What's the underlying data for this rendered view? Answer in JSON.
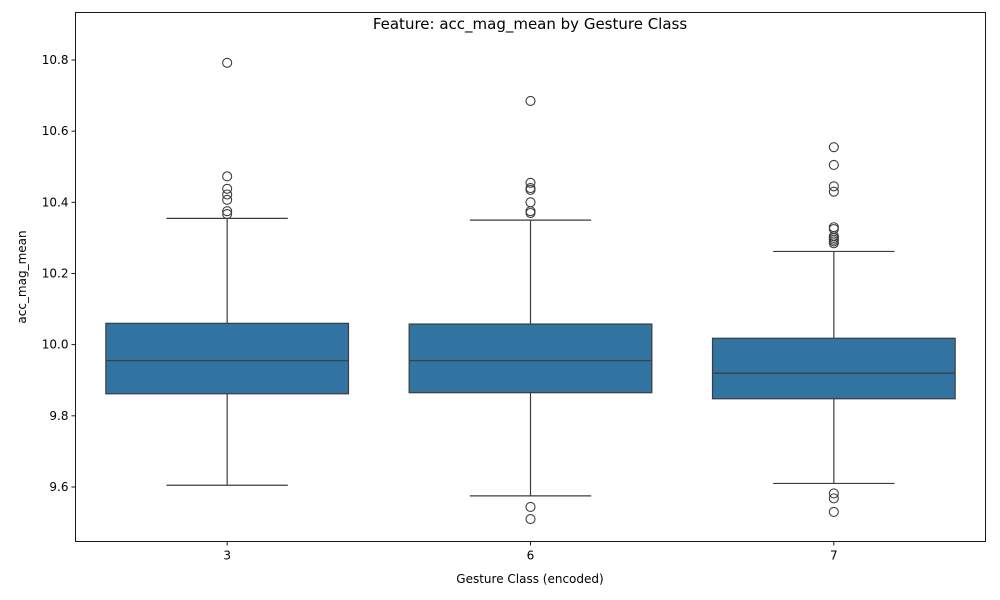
{
  "chart_data": {
    "type": "box",
    "title": "Feature: acc_mag_mean by Gesture Class",
    "xlabel": "Gesture Class (encoded)",
    "ylabel": "acc_mag_mean",
    "ylim": [
      9.45,
      10.85
    ],
    "yticks": [
      "9.6",
      "9.8",
      "10.0",
      "10.2",
      "10.4",
      "10.6",
      "10.8"
    ],
    "grid": false,
    "box_color": "#3274a1",
    "line_color": "#3d3d3d",
    "categories": [
      "3",
      "6",
      "7"
    ],
    "boxes": [
      {
        "category": "3",
        "whisker_low": 9.605,
        "q1": 9.862,
        "median": 9.955,
        "q3": 10.06,
        "whisker_high": 10.355,
        "outliers": [
          10.792,
          10.473,
          10.438,
          10.422,
          10.407,
          10.375,
          10.367
        ]
      },
      {
        "category": "6",
        "whisker_low": 9.575,
        "q1": 9.865,
        "median": 9.955,
        "q3": 10.058,
        "whisker_high": 10.35,
        "outliers": [
          10.685,
          10.455,
          10.44,
          10.435,
          10.4,
          10.375,
          10.37,
          9.544,
          9.51
        ]
      },
      {
        "category": "7",
        "whisker_low": 9.61,
        "q1": 9.848,
        "median": 9.92,
        "q3": 10.018,
        "whisker_high": 10.262,
        "outliers": [
          10.555,
          10.505,
          10.445,
          10.43,
          10.33,
          10.325,
          10.305,
          10.3,
          10.295,
          10.29,
          10.285,
          9.582,
          9.568,
          9.53
        ]
      }
    ]
  }
}
